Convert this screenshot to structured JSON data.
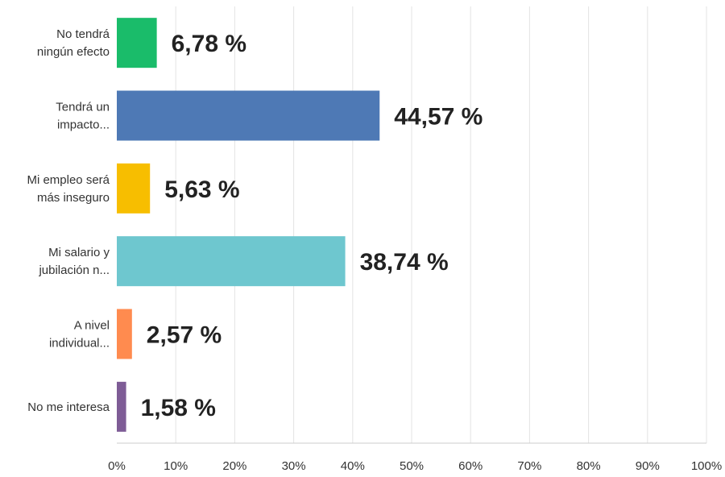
{
  "chart_data": {
    "type": "bar",
    "orientation": "horizontal",
    "categories": [
      [
        "No tendrá",
        "ningún efecto"
      ],
      [
        "Tendrá un",
        "impacto..."
      ],
      [
        "Mi empleo será",
        "más inseguro"
      ],
      [
        "Mi salario y",
        "jubilación n..."
      ],
      [
        "A nivel",
        "individual..."
      ],
      [
        "No me interesa"
      ]
    ],
    "values": [
      6.78,
      44.57,
      5.63,
      38.74,
      2.57,
      1.58
    ],
    "value_labels": [
      "6,78 %",
      "44,57 %",
      "5,63 %",
      "38,74 %",
      "2,57 %",
      "1,58 %"
    ],
    "colors": [
      "#1ABC6A",
      "#4E79B5",
      "#F7BE00",
      "#6EC7CF",
      "#FF8B4F",
      "#7E5C96"
    ],
    "xlim": [
      0,
      100
    ],
    "xticks": [
      0,
      10,
      20,
      30,
      40,
      50,
      60,
      70,
      80,
      90,
      100
    ],
    "xtick_labels": [
      "0%",
      "10%",
      "20%",
      "30%",
      "40%",
      "50%",
      "60%",
      "70%",
      "80%",
      "90%",
      "100%"
    ],
    "grid": true,
    "legend": "none"
  }
}
